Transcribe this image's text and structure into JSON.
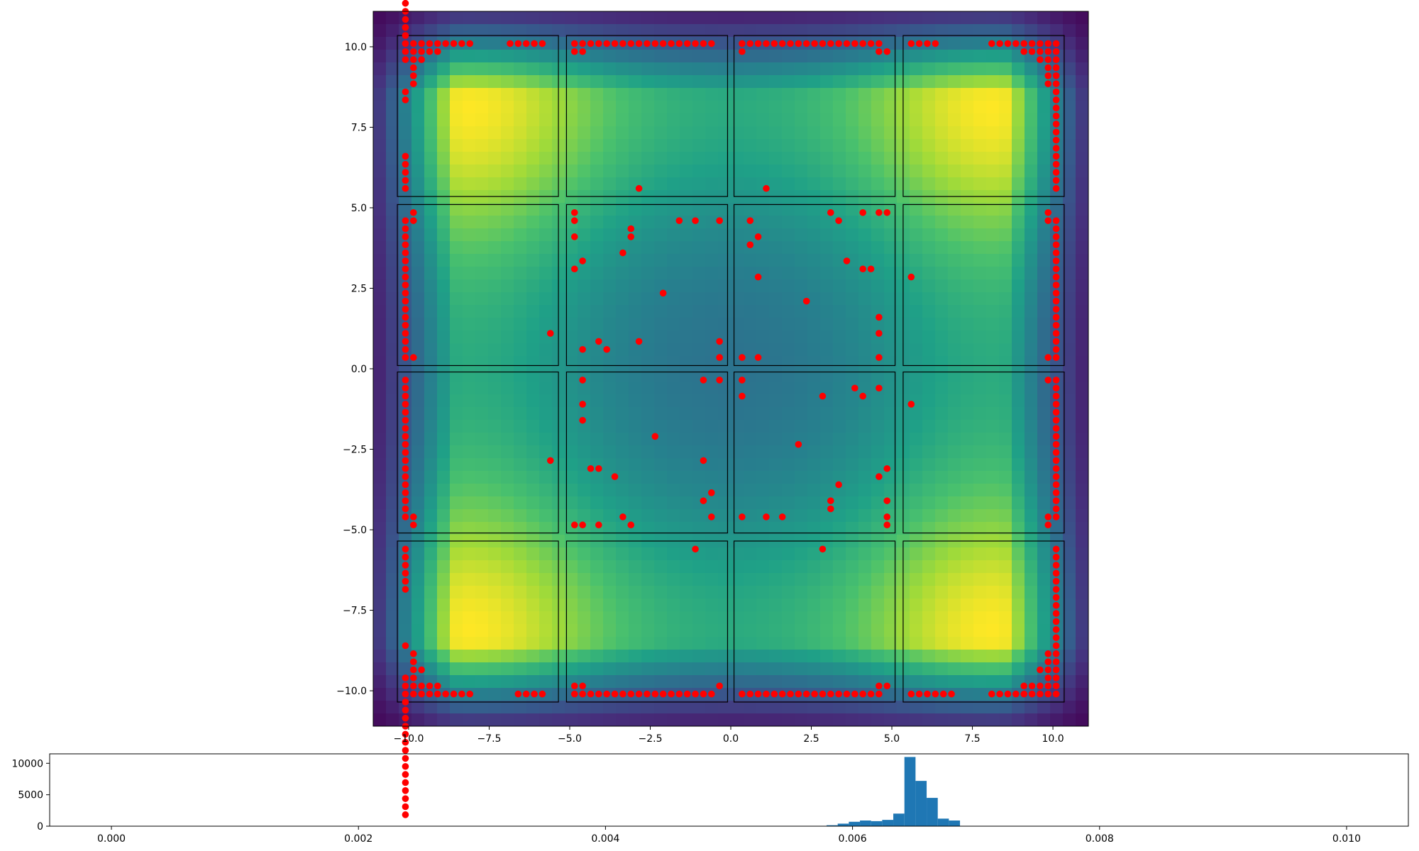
{
  "colors": {
    "viridis": [
      "#440154",
      "#46327e",
      "#365c8d",
      "#277f8e",
      "#1fa187",
      "#4ac16d",
      "#a0da39",
      "#fde725"
    ],
    "point": "#ff0000",
    "panel_edge": "#000000",
    "hist_bar": "#1f77b4"
  },
  "chart_data": [
    {
      "type": "scatter",
      "title": "",
      "xlabel": "",
      "ylabel": "",
      "xlim": [
        -11.1,
        11.1
      ],
      "ylim": [
        -11.1,
        11.1
      ],
      "xticks": [
        -10.0,
        -7.5,
        -5.0,
        -2.5,
        0.0,
        2.5,
        5.0,
        7.5,
        10.0
      ],
      "xtick_labels": [
        "−10.0",
        "−7.5",
        "−5.0",
        "−2.5",
        "0.0",
        "2.5",
        "5.0",
        "7.5",
        "10.0"
      ],
      "yticks": [
        10.0,
        7.5,
        5.0,
        2.5,
        0.0,
        -2.5,
        -5.0,
        -7.5,
        -10.0
      ],
      "ytick_labels": [
        "10.0",
        "7.5",
        "5.0",
        "2.5",
        "0.0",
        "−2.5",
        "−5.0",
        "−7.5",
        "−10.0"
      ],
      "grid": false,
      "background": "heatmap",
      "colormap": "viridis",
      "panels": [
        [
          -10.35,
          5.35,
          -5.35,
          10.35
        ],
        [
          -5.1,
          5.35,
          -0.1,
          10.35
        ],
        [
          0.1,
          5.35,
          5.1,
          10.35
        ],
        [
          5.35,
          5.35,
          10.35,
          10.35
        ],
        [
          -10.35,
          0.1,
          -5.35,
          5.1
        ],
        [
          -5.1,
          0.1,
          -0.1,
          5.1
        ],
        [
          0.1,
          0.1,
          5.1,
          5.1
        ],
        [
          5.35,
          0.1,
          10.35,
          5.1
        ],
        [
          -10.35,
          -5.1,
          -5.35,
          -0.1
        ],
        [
          -5.1,
          -5.1,
          -0.1,
          -0.1
        ],
        [
          0.1,
          -5.1,
          5.1,
          -0.1
        ],
        [
          5.35,
          -5.1,
          10.35,
          -0.1
        ],
        [
          -10.35,
          -10.35,
          -5.35,
          -5.35
        ],
        [
          -5.1,
          -10.35,
          -0.1,
          -5.35
        ],
        [
          0.1,
          -10.35,
          5.1,
          -5.35
        ],
        [
          5.35,
          -10.35,
          10.35,
          -5.35
        ]
      ],
      "points_uniform_spacing": 0.25,
      "points_uniform_lines": [
        [
          -10.1,
          10.1,
          0,
          1,
          16
        ],
        [
          -10.1,
          -10.1,
          0,
          -1,
          16
        ],
        [
          10.1,
          10.1,
          0,
          -1,
          16
        ],
        [
          10.1,
          -10.1,
          0,
          1,
          16
        ],
        [
          -10.1,
          10.1,
          1,
          0,
          9
        ],
        [
          10.1,
          10.1,
          -1,
          0,
          9
        ],
        [
          -10.1,
          -10.1,
          1,
          0,
          9
        ],
        [
          10.1,
          -10.1,
          -1,
          0,
          9
        ],
        [
          -10.1,
          9.85,
          1,
          0,
          5
        ],
        [
          10.1,
          9.85,
          -1,
          0,
          5
        ],
        [
          -10.1,
          -9.85,
          1,
          0,
          5
        ],
        [
          10.1,
          -9.85,
          -1,
          0,
          5
        ],
        [
          -9.85,
          9.85,
          0,
          -1,
          4
        ],
        [
          9.85,
          9.85,
          0,
          -1,
          4
        ],
        [
          -9.85,
          -9.85,
          0,
          1,
          4
        ],
        [
          9.85,
          -9.85,
          0,
          1,
          4
        ],
        [
          -10.1,
          9.6,
          1,
          0,
          2
        ],
        [
          10.1,
          9.6,
          -1,
          0,
          2
        ],
        [
          -10.1,
          -9.6,
          1,
          0,
          2
        ],
        [
          10.1,
          -9.6,
          -1,
          0,
          2
        ],
        [
          -10.1,
          6.6,
          0,
          -1,
          5
        ],
        [
          10.1,
          6.85,
          0,
          -1,
          6
        ],
        [
          -10.1,
          -5.6,
          0,
          -1,
          6
        ],
        [
          10.1,
          -5.6,
          0,
          -1,
          4
        ],
        [
          -6.85,
          10.1,
          1,
          0,
          5
        ],
        [
          5.6,
          10.1,
          1,
          0,
          4
        ],
        [
          -6.6,
          -10.1,
          1,
          0,
          4
        ],
        [
          5.6,
          -10.1,
          1,
          0,
          6
        ],
        [
          -4.85,
          10.1,
          1,
          0,
          18
        ],
        [
          0.35,
          10.1,
          1,
          0,
          18
        ],
        [
          -4.85,
          -10.1,
          1,
          0,
          18
        ],
        [
          0.35,
          -10.1,
          1,
          0,
          18
        ],
        [
          -10.1,
          4.6,
          0,
          -1,
          18
        ],
        [
          10.1,
          4.6,
          0,
          -1,
          18
        ],
        [
          -10.1,
          -0.35,
          0,
          -1,
          18
        ],
        [
          10.1,
          -0.35,
          0,
          -1,
          18
        ]
      ],
      "points": [
        [
          -9.85,
          9.35
        ],
        [
          -9.85,
          9.1
        ],
        [
          -9.85,
          8.85
        ],
        [
          9.85,
          9.35
        ],
        [
          9.85,
          9.1
        ],
        [
          9.85,
          8.85
        ],
        [
          -9.85,
          -9.35
        ],
        [
          -9.85,
          -9.1
        ],
        [
          -9.85,
          -8.85
        ],
        [
          9.85,
          -9.35
        ],
        [
          9.85,
          -9.1
        ],
        [
          9.85,
          -8.85
        ],
        [
          -10.1,
          8.6
        ],
        [
          -10.1,
          8.35
        ],
        [
          10.1,
          8.6
        ],
        [
          -10.1,
          -8.6
        ],
        [
          10.1,
          -8.35
        ],
        [
          10.1,
          -8.6
        ],
        [
          -9.6,
          9.6
        ],
        [
          9.6,
          9.6
        ],
        [
          -9.6,
          -9.35
        ],
        [
          9.6,
          -9.35
        ],
        [
          -4.85,
          9.85
        ],
        [
          -4.6,
          9.85
        ],
        [
          0.35,
          9.85
        ],
        [
          4.6,
          9.85
        ],
        [
          4.85,
          9.85
        ],
        [
          -4.85,
          -9.85
        ],
        [
          -4.6,
          -9.85
        ],
        [
          -0.35,
          -9.85
        ],
        [
          4.6,
          -9.85
        ],
        [
          4.85,
          -9.85
        ],
        [
          -9.85,
          4.85
        ],
        [
          -9.85,
          4.6
        ],
        [
          -9.85,
          0.35
        ],
        [
          9.85,
          4.85
        ],
        [
          9.85,
          4.6
        ],
        [
          9.85,
          0.35
        ],
        [
          -9.85,
          -4.6
        ],
        [
          -9.85,
          -4.85
        ],
        [
          9.85,
          -0.35
        ],
        [
          9.85,
          -4.6
        ],
        [
          9.85,
          -4.85
        ],
        [
          -2.85,
          5.6
        ],
        [
          1.1,
          5.6
        ],
        [
          -1.1,
          -5.6
        ],
        [
          2.85,
          -5.6
        ],
        [
          -5.6,
          1.1
        ],
        [
          5.6,
          2.85
        ],
        [
          -5.6,
          -2.85
        ],
        [
          5.6,
          -1.1
        ],
        [
          -4.85,
          4.85
        ],
        [
          -4.85,
          4.6
        ],
        [
          -4.85,
          4.1
        ],
        [
          -4.6,
          3.35
        ],
        [
          -4.85,
          3.1
        ],
        [
          -3.1,
          4.35
        ],
        [
          -3.1,
          4.1
        ],
        [
          -3.35,
          3.6
        ],
        [
          -1.6,
          4.6
        ],
        [
          -1.1,
          4.6
        ],
        [
          -0.35,
          4.6
        ],
        [
          -2.1,
          2.35
        ],
        [
          -4.6,
          0.6
        ],
        [
          -4.1,
          0.85
        ],
        [
          -3.85,
          0.6
        ],
        [
          -2.85,
          0.85
        ],
        [
          -0.35,
          0.85
        ],
        [
          -0.35,
          0.35
        ],
        [
          0.6,
          4.6
        ],
        [
          0.85,
          4.1
        ],
        [
          0.6,
          3.85
        ],
        [
          0.85,
          2.85
        ],
        [
          0.35,
          0.35
        ],
        [
          0.85,
          0.35
        ],
        [
          3.1,
          4.85
        ],
        [
          3.35,
          4.6
        ],
        [
          4.1,
          4.85
        ],
        [
          4.6,
          4.85
        ],
        [
          4.85,
          4.85
        ],
        [
          3.6,
          3.35
        ],
        [
          4.1,
          3.1
        ],
        [
          4.35,
          3.1
        ],
        [
          2.35,
          2.1
        ],
        [
          4.6,
          1.6
        ],
        [
          4.6,
          1.1
        ],
        [
          4.6,
          0.35
        ],
        [
          -4.6,
          -0.35
        ],
        [
          -4.6,
          -1.1
        ],
        [
          -4.6,
          -1.6
        ],
        [
          -0.85,
          -0.35
        ],
        [
          -0.35,
          -0.35
        ],
        [
          -2.35,
          -2.1
        ],
        [
          -4.35,
          -3.1
        ],
        [
          -4.1,
          -3.1
        ],
        [
          -3.6,
          -3.35
        ],
        [
          -0.85,
          -2.85
        ],
        [
          -0.6,
          -3.85
        ],
        [
          -0.85,
          -4.1
        ],
        [
          -3.35,
          -4.6
        ],
        [
          -0.6,
          -4.6
        ],
        [
          -4.85,
          -4.85
        ],
        [
          -4.6,
          -4.85
        ],
        [
          -4.1,
          -4.85
        ],
        [
          -3.1,
          -4.85
        ],
        [
          0.35,
          -0.35
        ],
        [
          0.35,
          -0.85
        ],
        [
          2.85,
          -0.85
        ],
        [
          3.85,
          -0.6
        ],
        [
          4.1,
          -0.85
        ],
        [
          4.6,
          -0.6
        ],
        [
          2.1,
          -2.35
        ],
        [
          4.85,
          -3.1
        ],
        [
          4.6,
          -3.35
        ],
        [
          3.35,
          -3.6
        ],
        [
          3.1,
          -4.1
        ],
        [
          3.1,
          -4.35
        ],
        [
          4.85,
          -4.1
        ],
        [
          0.35,
          -4.6
        ],
        [
          1.1,
          -4.6
        ],
        [
          1.6,
          -4.6
        ],
        [
          4.85,
          -4.6
        ],
        [
          4.85,
          -4.85
        ]
      ]
    },
    {
      "type": "bar",
      "title": "",
      "xlabel": "",
      "ylabel": "",
      "xlim": [
        -0.0005,
        0.0105
      ],
      "ylim": [
        0,
        11500
      ],
      "xticks": [
        0.0,
        0.002,
        0.004,
        0.006,
        0.008,
        0.01
      ],
      "xtick_labels": [
        "0.000",
        "0.002",
        "0.004",
        "0.006",
        "0.008",
        "0.010"
      ],
      "yticks": [
        0,
        5000,
        10000
      ],
      "ytick_labels": [
        "0",
        "5000",
        "10000"
      ],
      "bin_edges": [
        0.0057,
        0.00579,
        0.00588,
        0.00597,
        0.00606,
        0.00615,
        0.00624,
        0.00633,
        0.00642,
        0.00651,
        0.0066,
        0.00669,
        0.00678,
        0.00687,
        0.00696
      ],
      "values": [
        50,
        150,
        400,
        700,
        900,
        800,
        1000,
        2000,
        11000,
        7200,
        4500,
        1200,
        900,
        0
      ]
    }
  ]
}
